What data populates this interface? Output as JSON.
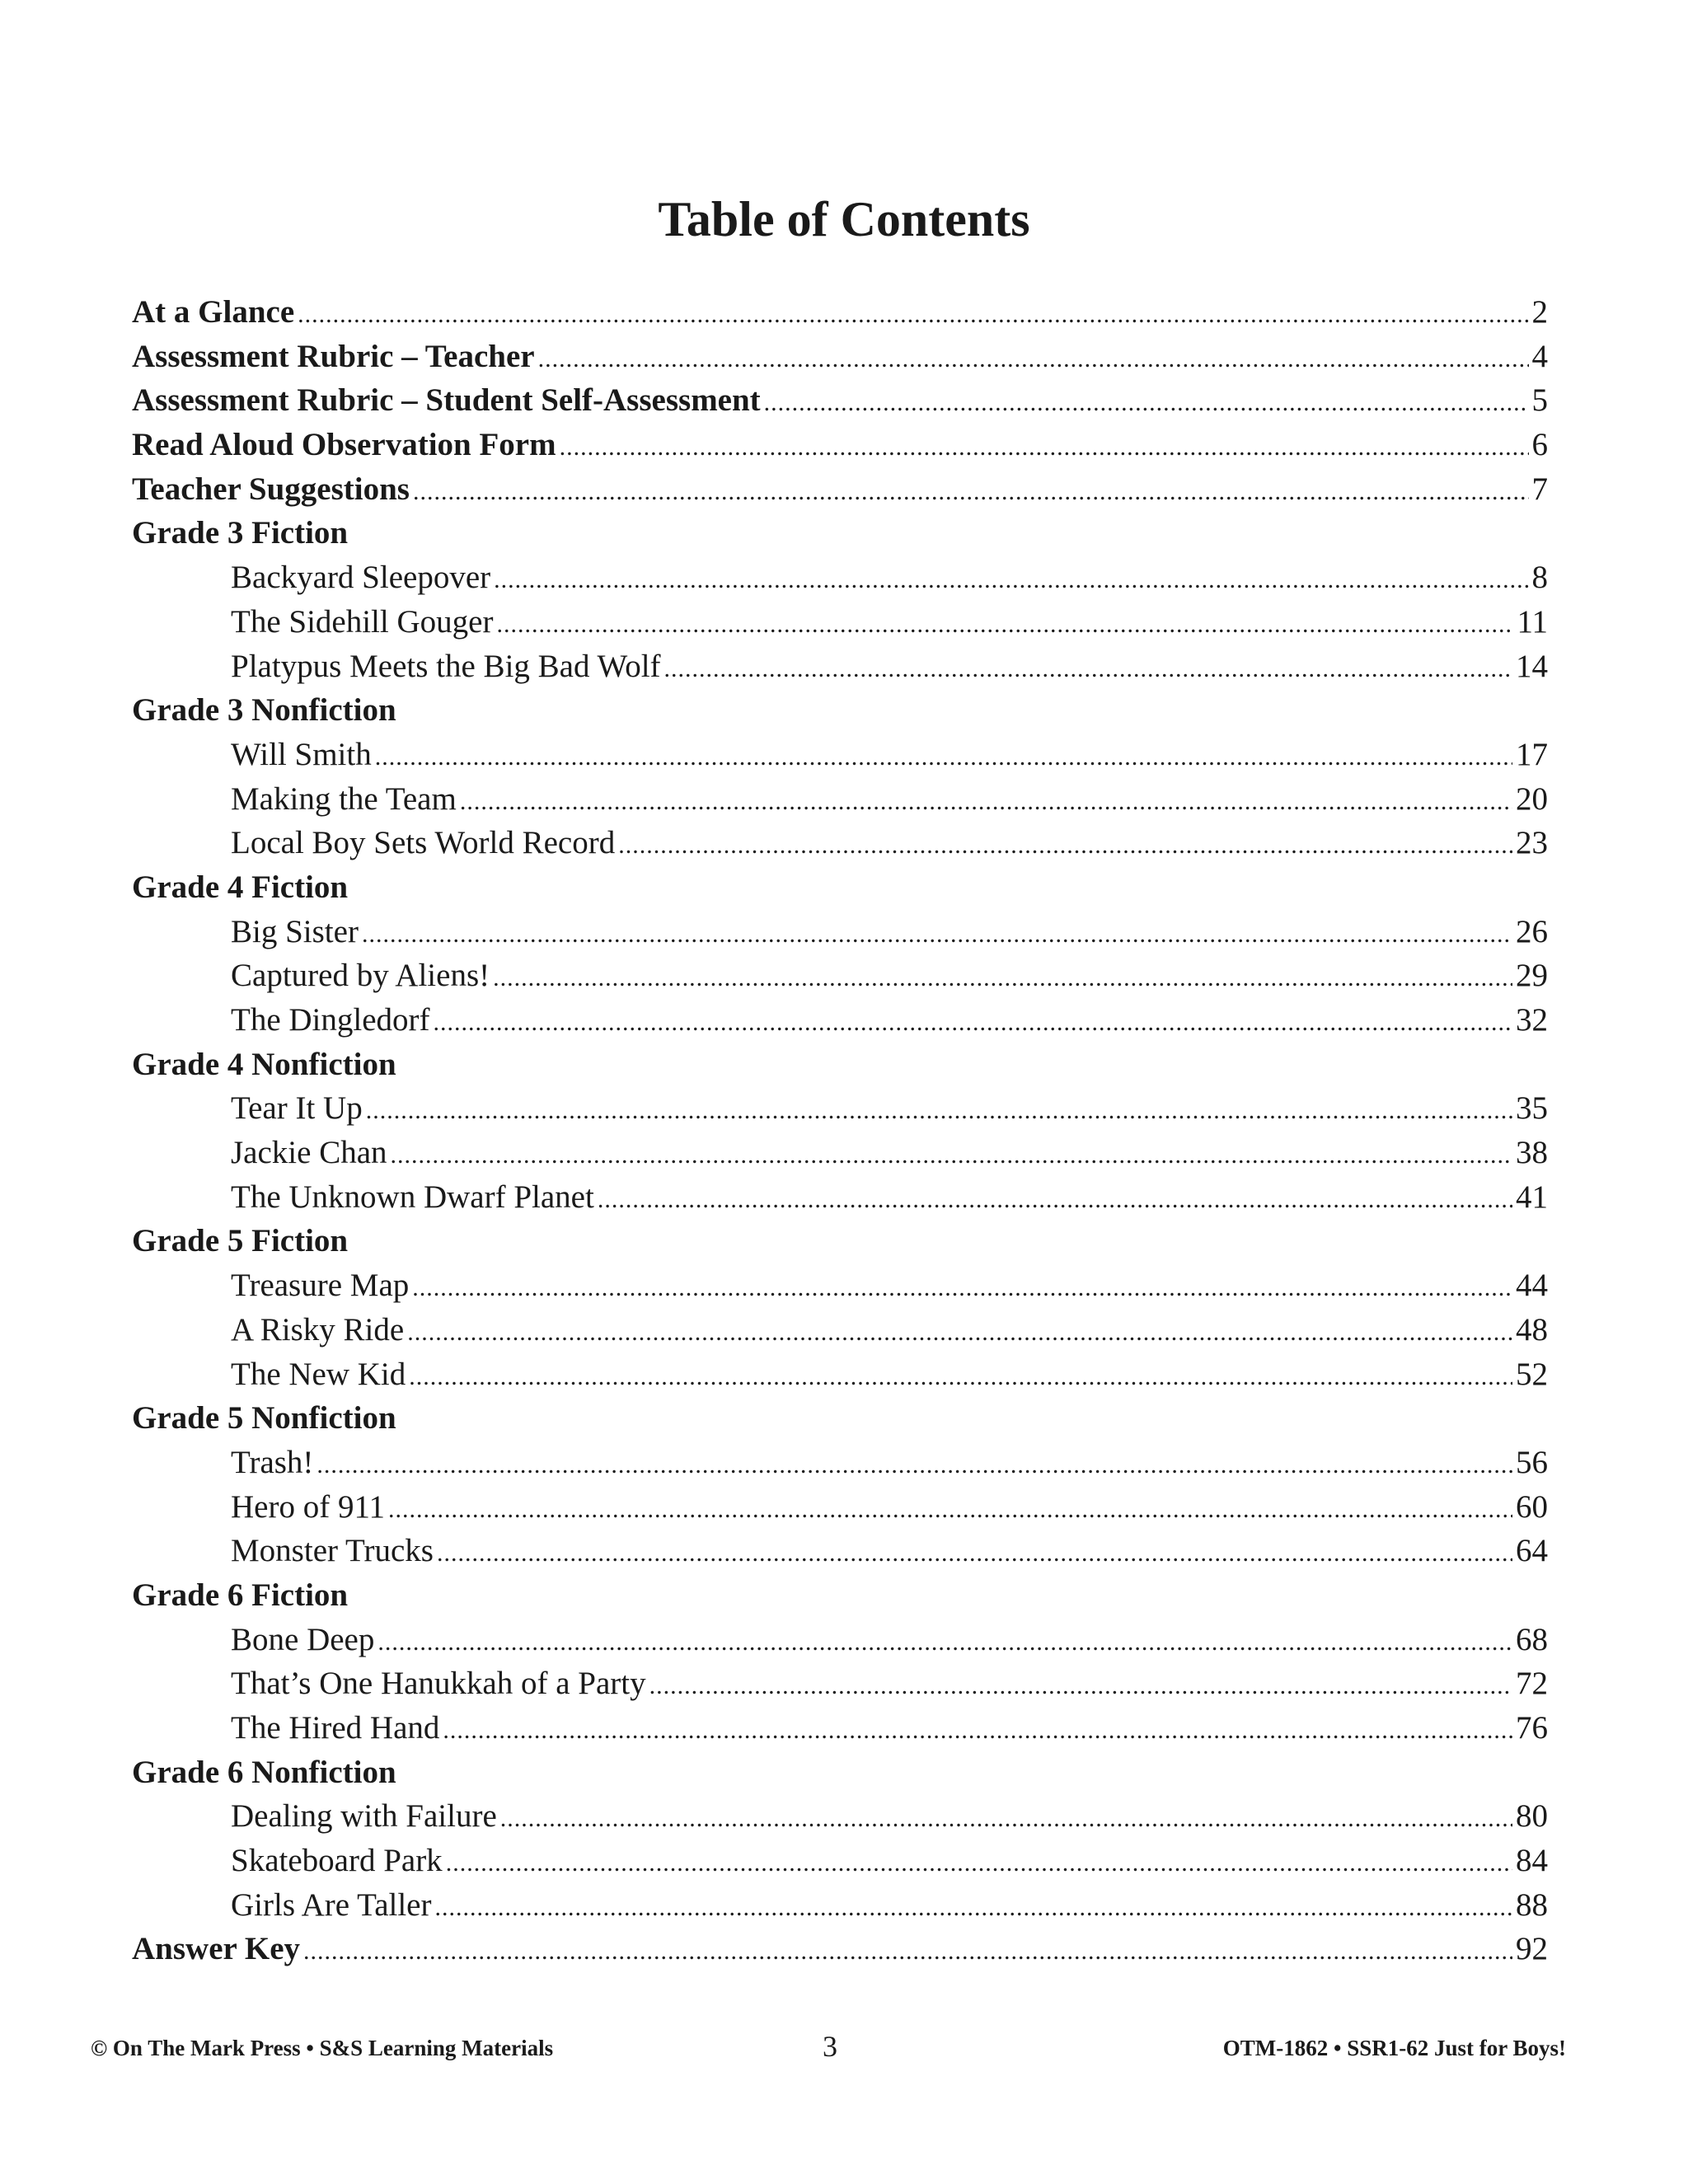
{
  "title": "Table of Contents",
  "entries": [
    {
      "label": "At a Glance",
      "page": "2",
      "kind": "section"
    },
    {
      "label": "Assessment Rubric – Teacher",
      "page": "4",
      "kind": "section"
    },
    {
      "label": "Assessment Rubric – Student Self-Assessment",
      "page": "5",
      "kind": "section"
    },
    {
      "label": "Read Aloud Observation Form",
      "page": "6",
      "kind": "section"
    },
    {
      "label": "Teacher Suggestions",
      "page": "7",
      "kind": "section"
    },
    {
      "label": "Grade 3 Fiction",
      "page": "",
      "kind": "header"
    },
    {
      "label": "Backyard Sleepover",
      "page": "8",
      "kind": "sub"
    },
    {
      "label": "The Sidehill Gouger",
      "page": "11",
      "kind": "sub"
    },
    {
      "label": "Platypus Meets the Big Bad Wolf",
      "page": "14",
      "kind": "sub"
    },
    {
      "label": "Grade 3 Nonfiction",
      "page": "",
      "kind": "header"
    },
    {
      "label": "Will Smith",
      "page": "17",
      "kind": "sub"
    },
    {
      "label": "Making the Team",
      "page": "20",
      "kind": "sub"
    },
    {
      "label": "Local Boy Sets World Record",
      "page": "23",
      "kind": "sub"
    },
    {
      "label": "Grade 4 Fiction",
      "page": "",
      "kind": "header"
    },
    {
      "label": "Big Sister",
      "page": "26",
      "kind": "sub"
    },
    {
      "label": "Captured by Aliens!",
      "page": "29",
      "kind": "sub"
    },
    {
      "label": "The Dingledorf",
      "page": "32",
      "kind": "sub"
    },
    {
      "label": "Grade 4 Nonfiction",
      "page": "",
      "kind": "header"
    },
    {
      "label": "Tear It Up",
      "page": "35",
      "kind": "sub"
    },
    {
      "label": "Jackie Chan",
      "page": "38",
      "kind": "sub"
    },
    {
      "label": "The Unknown Dwarf Planet",
      "page": "41",
      "kind": "sub"
    },
    {
      "label": "Grade 5 Fiction",
      "page": "",
      "kind": "header"
    },
    {
      "label": "Treasure Map",
      "page": "44",
      "kind": "sub"
    },
    {
      "label": "A Risky Ride",
      "page": "48",
      "kind": "sub"
    },
    {
      "label": "The New Kid",
      "page": "52",
      "kind": "sub"
    },
    {
      "label": "Grade 5 Nonfiction",
      "page": "",
      "kind": "header"
    },
    {
      "label": "Trash!",
      "page": "56",
      "kind": "sub"
    },
    {
      "label": "Hero of 911",
      "page": "60",
      "kind": "sub"
    },
    {
      "label": "Monster Trucks",
      "page": "64",
      "kind": "sub"
    },
    {
      "label": "Grade 6 Fiction",
      "page": "",
      "kind": "header"
    },
    {
      "label": "Bone Deep",
      "page": "68",
      "kind": "sub"
    },
    {
      "label": "That’s One Hanukkah of a Party",
      "page": "72",
      "kind": "sub"
    },
    {
      "label": "The Hired Hand",
      "page": "76",
      "kind": "sub"
    },
    {
      "label": "Grade 6 Nonfiction",
      "page": "",
      "kind": "header"
    },
    {
      "label": "Dealing with Failure",
      "page": "80",
      "kind": "sub"
    },
    {
      "label": "Skateboard Park",
      "page": "84",
      "kind": "sub"
    },
    {
      "label": "Girls Are Taller",
      "page": "88",
      "kind": "sub"
    },
    {
      "label": "Answer Key",
      "page": "92",
      "kind": "section"
    }
  ],
  "footer": {
    "left": "© On The Mark Press • S&S Learning Materials",
    "page_number": "3",
    "right": "OTM-1862 • SSR1-62 Just for Boys!"
  }
}
